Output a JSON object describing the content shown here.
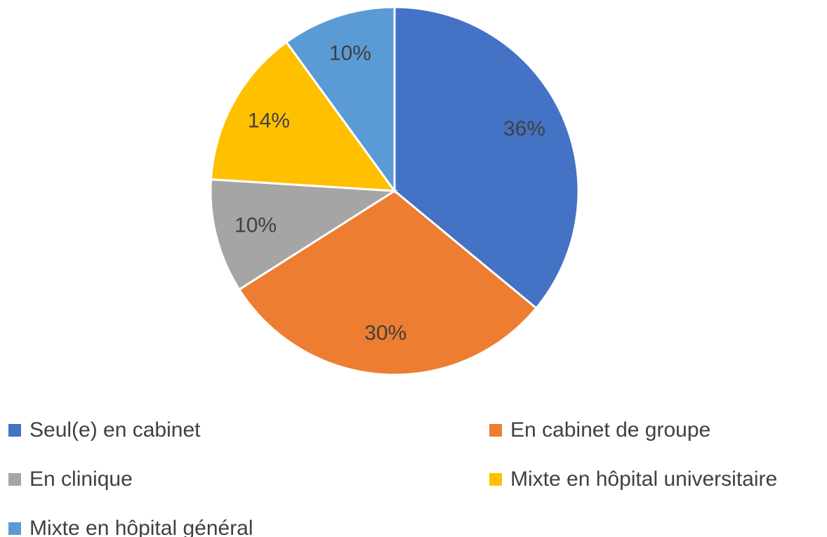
{
  "chart_data": {
    "type": "pie",
    "categories": [
      "Seul(e) en cabinet",
      "En cabinet de groupe",
      "En clinique",
      "Mixte en hôpital universitaire",
      "Mixte en hôpital général"
    ],
    "values": [
      36,
      30,
      10,
      14,
      10
    ],
    "value_labels": [
      "36%",
      "30%",
      "10%",
      "14%",
      "10%"
    ],
    "colors": [
      "#4472c4",
      "#ed7d31",
      "#a5a5a5",
      "#ffc000",
      "#5b9bd5"
    ]
  }
}
